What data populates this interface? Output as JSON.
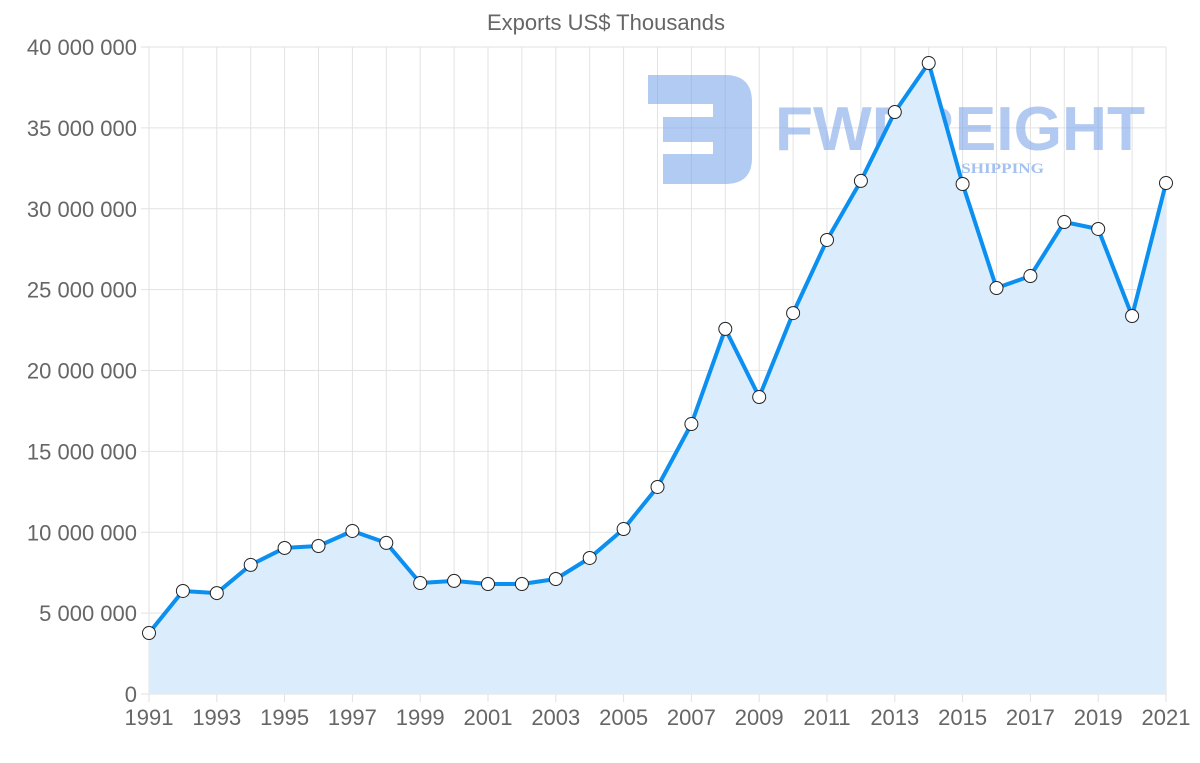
{
  "chart_data": {
    "type": "line",
    "title": "Exports US$ Thousands",
    "xlabel": "",
    "ylabel": "",
    "ylim": [
      0,
      40000000
    ],
    "grid": true,
    "fill": true,
    "colors": {
      "line": "#0b8ff0",
      "fill": "#dbecfc",
      "grid": "#e2e2e2",
      "point": "#ffffff"
    },
    "x": [
      1991,
      1992,
      1993,
      1994,
      1995,
      1996,
      1997,
      1998,
      1999,
      2000,
      2001,
      2002,
      2003,
      2004,
      2005,
      2006,
      2007,
      2008,
      2009,
      2010,
      2011,
      2012,
      2013,
      2014,
      2015,
      2016,
      2017,
      2018,
      2019,
      2020,
      2021
    ],
    "values": [
      3770000,
      6370000,
      6240000,
      7980000,
      9030000,
      9150000,
      10080000,
      9340000,
      6860000,
      6990000,
      6800000,
      6800000,
      7110000,
      8410000,
      10200000,
      12800000,
      16690000,
      22570000,
      18360000,
      23550000,
      28070000,
      31720000,
      35980000,
      39010000,
      31530000,
      25100000,
      25840000,
      29180000,
      28750000,
      23370000,
      31590000
    ],
    "yticks": [
      "0",
      "5 000 000",
      "10 000 000",
      "15 000 000",
      "20 000 000",
      "25 000 000",
      "30 000 000",
      "35 000 000",
      "40 000 000"
    ],
    "xticks": [
      "1991",
      "1993",
      "1995",
      "1997",
      "1999",
      "2001",
      "2003",
      "2005",
      "2007",
      "2009",
      "2011",
      "2013",
      "2015",
      "2017",
      "2019",
      "2021"
    ]
  },
  "watermark": {
    "brand": "FWFREIGHT",
    "tagline": "FREIGHT SHIPPING"
  }
}
